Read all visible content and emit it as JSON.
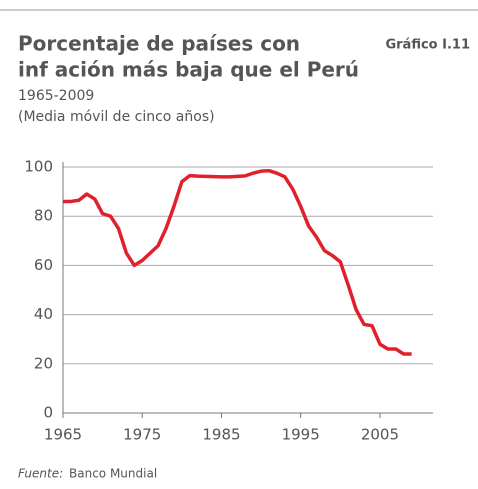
{
  "chart_data": {
    "type": "line",
    "title": [
      "Porcentaje de países con",
      "inf ación más baja que el Perú"
    ],
    "chart_number": "Gráfico I.11",
    "subtitle": [
      "1965-2009",
      "(Media móvil de cinco años)"
    ],
    "source_label": "Fuente:",
    "source": "Banco Mundial",
    "x": [
      1965,
      1966,
      1967,
      1968,
      1969,
      1970,
      1971,
      1972,
      1973,
      1974,
      1975,
      1976,
      1977,
      1978,
      1979,
      1980,
      1981,
      1982,
      1983,
      1984,
      1985,
      1986,
      1987,
      1988,
      1989,
      1990,
      1991,
      1992,
      1993,
      1994,
      1995,
      1996,
      1997,
      1998,
      1999,
      2000,
      2001,
      2002,
      2003,
      2004,
      2005,
      2006,
      2007,
      2008,
      2009
    ],
    "series": [
      {
        "color": "#e0202a",
        "values": [
          86,
          86,
          86.5,
          89,
          87,
          81,
          80,
          75,
          65,
          60,
          62,
          65,
          68,
          75,
          84,
          94,
          96.5,
          96.3,
          96.2,
          96.1,
          96,
          96,
          96.2,
          96.4,
          97.5,
          98.3,
          98.5,
          97.5,
          96,
          91,
          84,
          76,
          71.5,
          66,
          64,
          61.5,
          52,
          42,
          36,
          35.5,
          28,
          26,
          26,
          24,
          24
        ]
      }
    ],
    "xlim": [
      1965,
      2011.7
    ],
    "xticks": [
      1965,
      1975,
      1985,
      1995,
      2005
    ],
    "ylim": [
      0,
      100
    ],
    "yticks": [
      0,
      20,
      40,
      60,
      80,
      100
    ],
    "grid": true
  }
}
